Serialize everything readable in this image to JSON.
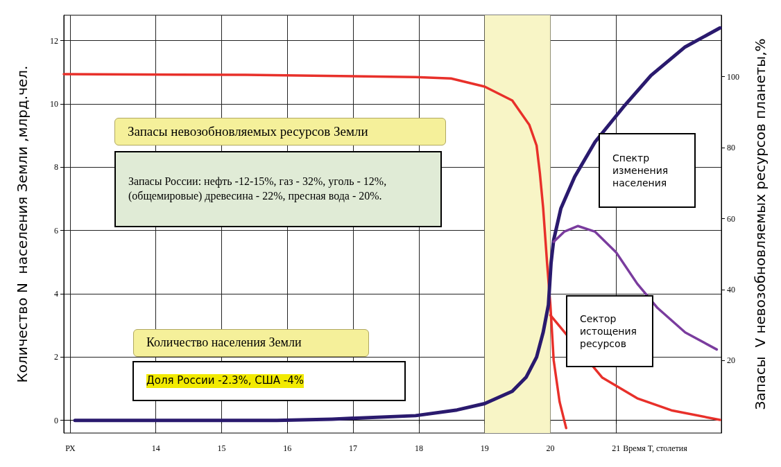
{
  "chart_data": {
    "type": "line",
    "xlabel": "Время Т, столетия",
    "ylabel": "Количество N  населения Земли ,млрд.чел.",
    "y2label": "Запасы  V невозобновляемых ресурсов планеты,%",
    "xlim": [
      12.6,
      22.6
    ],
    "xticks": [
      {
        "value": 12.7,
        "label": "РХ"
      },
      14,
      15,
      16,
      17,
      18,
      19,
      20,
      21
    ],
    "ylim": [
      -0.4,
      12.8
    ],
    "yticks": [
      0,
      2,
      4,
      6,
      8,
      10,
      12
    ],
    "y2lim": [
      -0.4,
      117.3
    ],
    "y2ticks": [
      20,
      40,
      60,
      80,
      100
    ],
    "grid": true,
    "marker": "none",
    "line_style": "solid",
    "bands": [
      {
        "axis": "x",
        "from": 19,
        "to": 20,
        "label": null,
        "color": "#f8f5c6"
      }
    ],
    "series": [
      {
        "color": "#e8302a",
        "axis": "y2",
        "x": [
          12.6,
          15.37,
          17.95,
          18.49,
          19,
          19.42,
          19.68,
          19.79,
          19.84,
          19.89,
          19.95,
          20.0,
          20.05,
          20.14,
          20.24
        ],
        "values": [
          100.7,
          100.5,
          99.9,
          99.5,
          97.2,
          93.3,
          86.4,
          80.6,
          72.8,
          63,
          47.4,
          35.7,
          20.1,
          8.4,
          1
        ]
      },
      {
        "color": "#e8302a",
        "axis": "y2",
        "x": [
          20.0,
          20.79,
          21.32,
          21.84,
          22.58
        ],
        "values": [
          32.8,
          15.2,
          9.4,
          6,
          3.3
        ]
      },
      {
        "color": "#2a1a6e",
        "x": [
          12.77,
          15.84,
          16.68,
          17.95,
          18.58,
          19,
          19.42,
          19.63,
          19.79,
          19.89,
          19.97,
          20.01,
          20.05,
          20.16,
          20.37,
          20.68,
          21.11,
          21.53,
          22.05,
          22.58
        ],
        "values": [
          0,
          0,
          0.04,
          0.15,
          0.33,
          0.53,
          0.92,
          1.36,
          2.0,
          2.78,
          3.65,
          4.97,
          5.7,
          6.7,
          7.7,
          8.8,
          9.9,
          10.9,
          11.8,
          12.4
        ]
      },
      {
        "color": "#7a3c9e",
        "x": [
          20.05,
          20.21,
          20.42,
          20.68,
          21.0,
          21.32,
          21.63,
          22.05,
          22.53
        ],
        "values": [
          5.64,
          5.96,
          6.14,
          5.96,
          5.31,
          4.32,
          3.55,
          2.78,
          2.24
        ]
      }
    ],
    "annotations": [
      "Запасы невозобновляемых ресурсов Земли",
      "Запасы России: нефть -12-15%, газ - 32%, уголь - 12%, (общемировые) древесина - 22%, пресная вода - 20%.",
      "Количество населения Земли",
      "Доля России -2.3%, США -4%",
      "Спектр изменения населения",
      "Сектор истощения ресурсов"
    ]
  }
}
